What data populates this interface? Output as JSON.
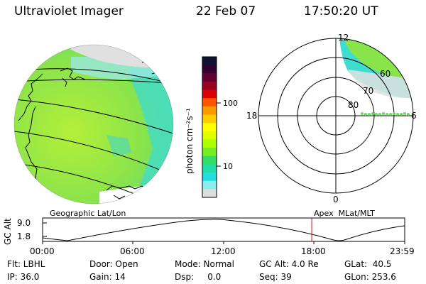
{
  "header": {
    "instrument": "Ultraviolet Imager",
    "date": "22 Feb 07",
    "time": "17:50:20 UT"
  },
  "colorbar": {
    "label": "photon cm⁻²s⁻¹",
    "ticks": [
      "100",
      "10"
    ],
    "colors": [
      "#111133",
      "#330033",
      "#660033",
      "#990022",
      "#dd0000",
      "#ff5500",
      "#ff9900",
      "#ffcc00",
      "#ffff00",
      "#ddff00",
      "#aaff00",
      "#77ee22",
      "#33dd66",
      "#22ddaa",
      "#22dddd",
      "#88eeee",
      "#dddddd"
    ]
  },
  "left_map": {
    "caption": "Geographic Lat/Lon"
  },
  "polar_plot": {
    "caption": "Apex  MLat/MLT",
    "mlt_labels": {
      "top": "12",
      "left": "18",
      "bottom": "0",
      "right": "6"
    },
    "mlat_labels": [
      "60",
      "70",
      "80"
    ]
  },
  "altitude_plot": {
    "ylabel": "GC Alt",
    "yticks": [
      "9.0",
      "1.8"
    ],
    "xticks": [
      "00:00",
      "06:00",
      "12:00",
      "18:00",
      "23:59"
    ],
    "marker_time_hours": 17.84
  },
  "status": {
    "flt": "Flt: LBHL",
    "ip": "IP: 36.0",
    "door": "Door: Open",
    "gain": "Gain: 14",
    "mode": "Mode: Normal",
    "dsp": "Dsp:     0.0",
    "gcalt": "GC Alt: 4.0 Re",
    "seq": "Seq: 39",
    "glat": "GLat:  40.5",
    "glon": "GLon: 253.6"
  },
  "colors": {
    "green": "#88e44a",
    "green_light": "#a6ec48",
    "cyan": "#3fdcd0",
    "grey": "#d8d8d8",
    "marker": "#dd0000"
  }
}
